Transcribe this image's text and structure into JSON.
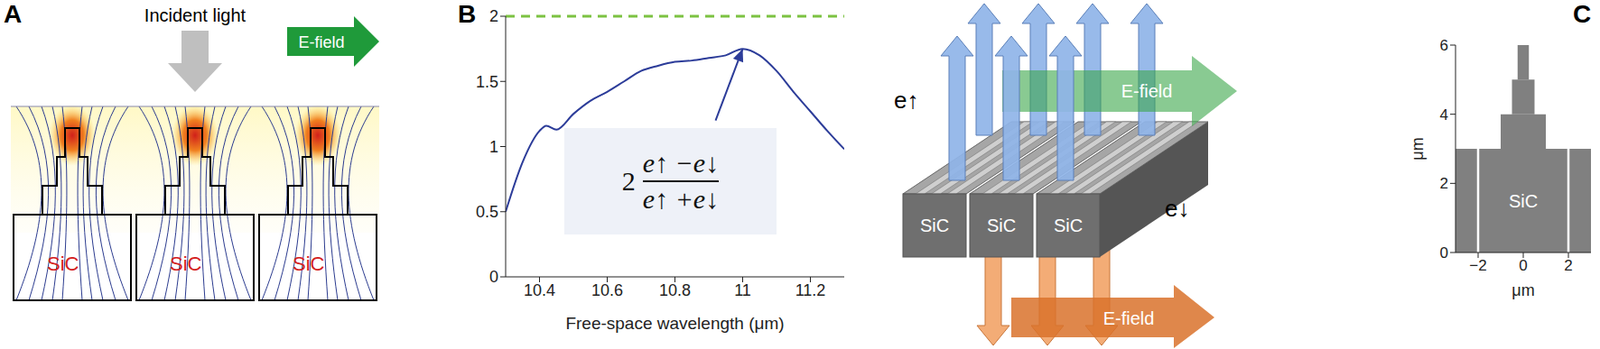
{
  "panel_a": {
    "panel_label": "A",
    "incident_label": "Incident light",
    "field_label": "E-field",
    "material_labels": [
      "SiC",
      "SiC",
      "SiC"
    ]
  },
  "panel_b_illustration": {
    "up_label": "e↑",
    "down_label": "e↓",
    "field_labels": [
      "E-field",
      "E-field"
    ],
    "material_labels": [
      "SiC",
      "SiC",
      "SiC"
    ]
  },
  "chart_data": [
    {
      "panel_label": "B",
      "type": "line",
      "xlabel": "Free-space wavelength (μm)",
      "x": [
        10.3,
        10.35,
        10.4,
        10.42,
        10.45,
        10.5,
        10.55,
        10.6,
        10.65,
        10.7,
        10.75,
        10.8,
        10.85,
        10.9,
        10.95,
        11,
        11.05,
        11.1,
        11.15,
        11.2,
        11.25,
        11.3
      ],
      "values": [
        0.5,
        0.88,
        1.12,
        1.16,
        1.13,
        1.25,
        1.35,
        1.42,
        1.5,
        1.58,
        1.62,
        1.65,
        1.66,
        1.68,
        1.7,
        1.75,
        1.7,
        1.58,
        1.42,
        1.27,
        1.12,
        0.98
      ],
      "color": "#2c3c99",
      "xlim": [
        10.3,
        11.3
      ],
      "xticks": [
        10.4,
        10.6,
        10.8,
        11,
        11.2
      ],
      "ylim": [
        0,
        2
      ],
      "yticks": [
        0,
        0.5,
        1,
        1.5,
        2
      ],
      "grid": false,
      "reference_line": {
        "value": 2,
        "color": "#7cc242",
        "line_style": "dashed"
      },
      "annotation": {
        "coefficient": "2",
        "numerator": "e↑ −e↓",
        "denominator": "e↑ +e↓",
        "x": 11,
        "y": 1.75
      }
    },
    {
      "panel_label": "C",
      "type": "rect",
      "xlabel": "μm",
      "ylabel": "μm",
      "xlim": [
        -3,
        3
      ],
      "xticks": [
        {
          "value": -2,
          "label": "−2"
        },
        0,
        2
      ],
      "ylim": [
        0,
        6
      ],
      "yticks": [
        0,
        2,
        4,
        6
      ],
      "color": "#808080",
      "rects": [
        {
          "x": [
            -3,
            -2.05
          ],
          "y": [
            0,
            3
          ]
        },
        {
          "x": [
            -1.95,
            1.95
          ],
          "y": [
            0,
            3
          ],
          "text": "SiC"
        },
        {
          "x": [
            2.05,
            3
          ],
          "y": [
            0,
            3
          ]
        },
        {
          "x": [
            -1,
            1
          ],
          "y": [
            3,
            4
          ]
        },
        {
          "x": [
            -0.5,
            0.5
          ],
          "y": [
            4,
            5
          ]
        },
        {
          "x": [
            -0.25,
            0.25
          ],
          "y": [
            5,
            6
          ]
        }
      ]
    }
  ]
}
